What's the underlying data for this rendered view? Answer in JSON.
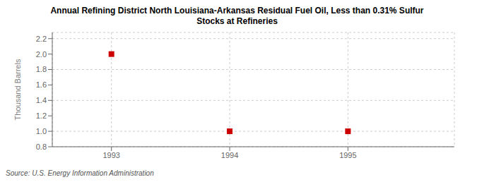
{
  "chart_data": {
    "type": "scatter",
    "title": "Annual Refining District North Louisiana-Arkansas Residual Fuel Oil, Less than 0.31% Sulfur\nStocks at Refineries",
    "y_label": "Thousand Barrels",
    "annotations": [
      "Source: U.S. Energy Information Administration"
    ],
    "x": [
      1993,
      1994,
      1995
    ],
    "values": [
      2.0,
      1.0,
      1.0
    ],
    "color": "#cc0000",
    "marker": "square",
    "xlim": [
      1992.5,
      1995.9
    ],
    "ylim": [
      0.8,
      2.28
    ],
    "xticks": [
      1993,
      1994,
      1995
    ],
    "yticks": [
      0.8,
      {
        "value": 1.0,
        "label": "1.0"
      },
      1.2,
      1.4,
      1.6,
      1.8,
      {
        "value": 2.0,
        "label": "2.0"
      },
      2.2
    ],
    "grid": true
  }
}
